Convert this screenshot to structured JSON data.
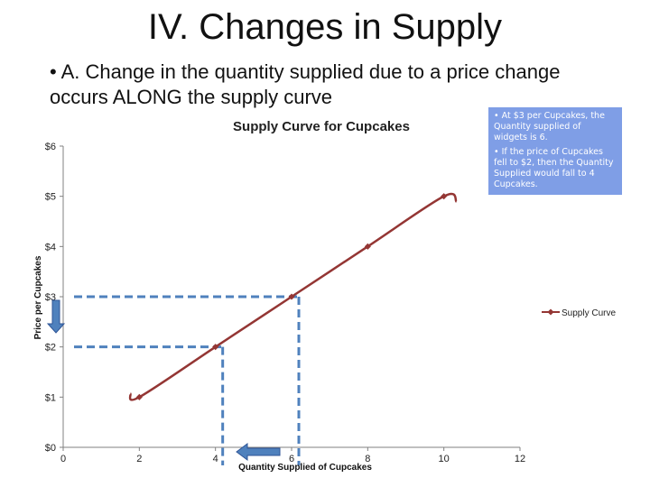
{
  "slide": {
    "title": "IV. Changes in Supply",
    "bullet": "• A. Change in the quantity supplied due to a price change occurs ALONG the supply curve"
  },
  "callout": {
    "text1": "• At $3 per Cupcakes, the Quantity supplied of widgets is 6.",
    "text2": "• If the price of Cupcakes fell to $2, then the Quantity Supplied would fall to 4 Cupcakes."
  },
  "colors": {
    "series": "#943634",
    "guide": "#4f81bd",
    "callout_bg": "#7f9ee6",
    "arrow_fill": "#4f81bd",
    "arrow_stroke": "#2f5597"
  },
  "chart_data": {
    "type": "line",
    "title": "Supply Curve for Cupcakes",
    "xlabel": "Quantity Supplied of Cupcakes",
    "ylabel": "Price per Cupcakes",
    "xlim": [
      0,
      12
    ],
    "ylim": [
      0,
      6
    ],
    "xticks": [
      0,
      2,
      4,
      6,
      8,
      10,
      12
    ],
    "yticks": [
      0,
      1,
      2,
      3,
      4,
      5,
      6
    ],
    "xtick_labels": [
      "0",
      "2",
      "4",
      "6",
      "8",
      "10",
      "12"
    ],
    "ytick_labels": [
      "$0",
      "$1",
      "$2",
      "$3",
      "$4",
      "$5",
      "$6"
    ],
    "legend_position": "right",
    "series": [
      {
        "name": "Supply Curve",
        "points": [
          {
            "x": 2,
            "y": 1
          },
          {
            "x": 4,
            "y": 2
          },
          {
            "x": 6,
            "y": 3
          },
          {
            "x": 8,
            "y": 4
          },
          {
            "x": 10,
            "y": 5
          }
        ]
      }
    ],
    "guides": [
      {
        "x": 6,
        "y": 3
      },
      {
        "x": 4,
        "y": 2
      }
    ],
    "arrows": [
      {
        "direction": "down",
        "axis": "price"
      },
      {
        "direction": "left",
        "axis": "quantity"
      }
    ]
  }
}
